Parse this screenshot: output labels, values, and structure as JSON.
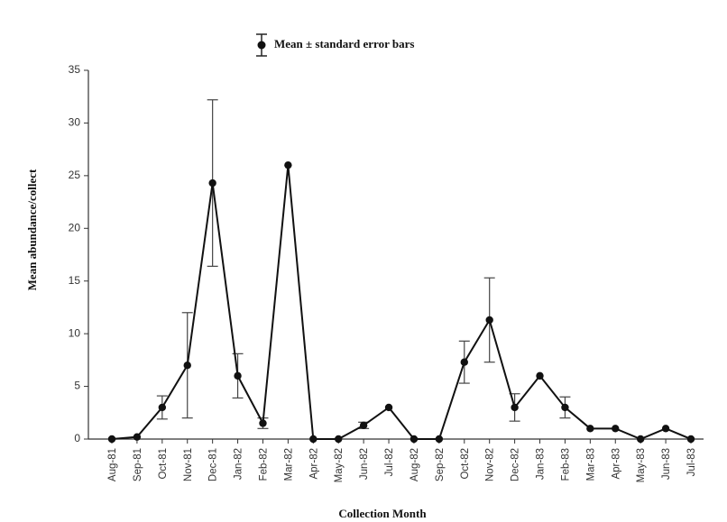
{
  "chart_data": {
    "type": "line",
    "xlabel": "Collection Month",
    "ylabel": "Mean abundance/collect",
    "ylim": [
      0,
      35
    ],
    "yticks": [
      0,
      5,
      10,
      15,
      20,
      25,
      30,
      35
    ],
    "grid": false,
    "legend": {
      "label": "Mean ± standard error bars",
      "position": "top-center"
    },
    "categories": [
      "Aug-81",
      "Sep-81",
      "Oct-81",
      "Nov-81",
      "Dec-81",
      "Jan-82",
      "Feb-82",
      "Mar-82",
      "Apr-82",
      "May-82",
      "Jun-82",
      "Jul-82",
      "Aug-82",
      "Sep-82",
      "Oct-82",
      "Nov-82",
      "Dec-82",
      "Jan-83",
      "Feb-83",
      "Mar-83",
      "Apr-83",
      "May-83",
      "Jun-83",
      "Jul-83"
    ],
    "series": [
      {
        "name": "Mean ± standard error bars",
        "values": [
          0,
          0.2,
          3.0,
          7.0,
          24.3,
          6.0,
          1.5,
          26.0,
          0,
          0,
          1.3,
          3.0,
          0,
          0,
          7.3,
          11.3,
          3.0,
          6.0,
          3.0,
          1.0,
          1.0,
          0,
          1.0,
          0
        ],
        "error": [
          0,
          0,
          1.1,
          5.0,
          7.9,
          2.1,
          0.5,
          0,
          0,
          0,
          0.3,
          0,
          0,
          0,
          2.0,
          4.0,
          1.3,
          0,
          1.0,
          0,
          0,
          0,
          0,
          0
        ]
      }
    ]
  }
}
